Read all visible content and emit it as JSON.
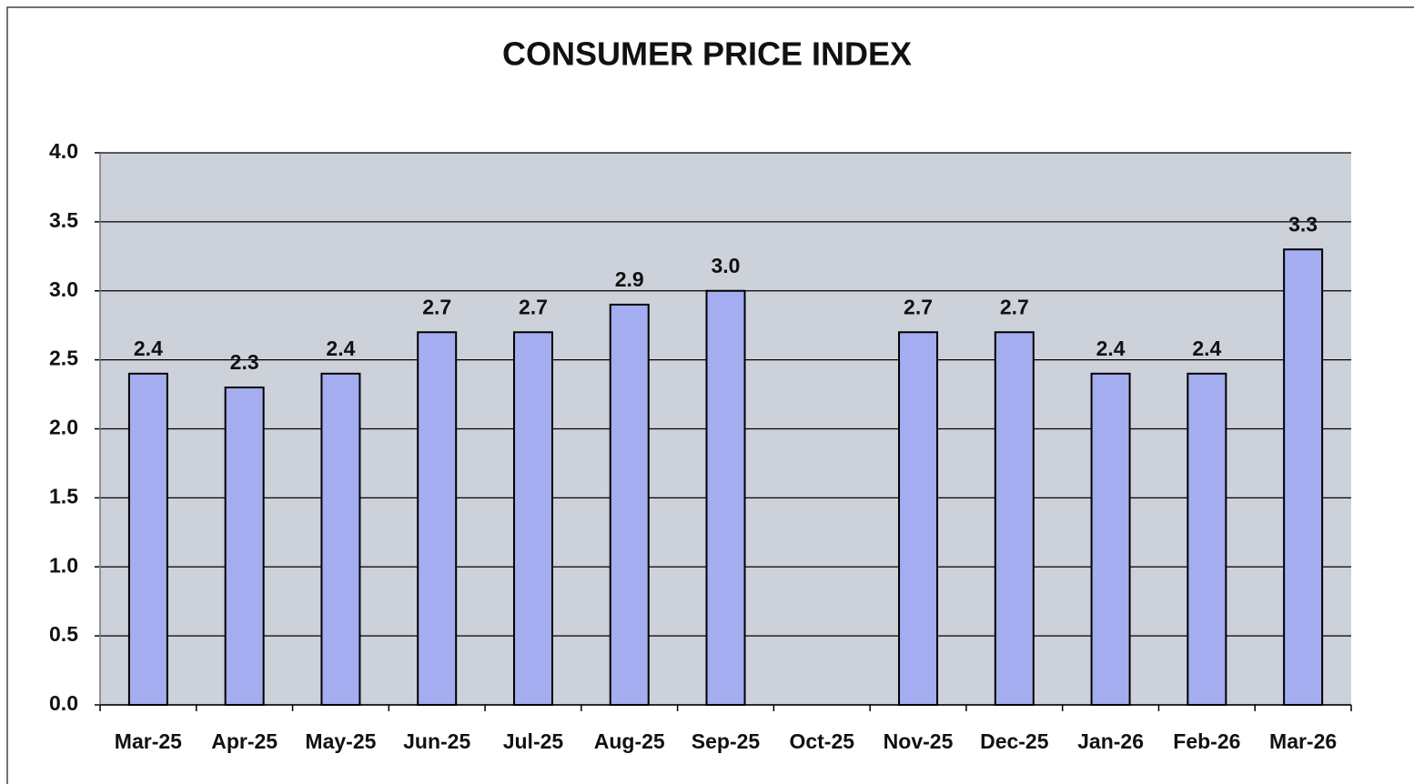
{
  "chart_data": {
    "type": "bar",
    "title": "CONSUMER PRICE INDEX",
    "categories": [
      "Mar-25",
      "Apr-25",
      "May-25",
      "Jun-25",
      "Jul-25",
      "Aug-25",
      "Sep-25",
      "Oct-25",
      "Nov-25",
      "Dec-25",
      "Jan-26",
      "Feb-26",
      "Mar-26"
    ],
    "values": [
      2.4,
      2.3,
      2.4,
      2.7,
      2.7,
      2.9,
      3.0,
      null,
      2.7,
      2.7,
      2.4,
      2.4,
      3.3
    ],
    "value_labels": [
      "2.4",
      "2.3",
      "2.4",
      "2.7",
      "2.7",
      "2.9",
      "3.0",
      null,
      "2.7",
      "2.7",
      "2.4",
      "2.4",
      "3.3"
    ],
    "color": "#a3adef",
    "ylim": [
      0,
      4
    ],
    "yticks": [
      {
        "value": 0,
        "label": "0.0"
      },
      0.5,
      {
        "value": 1,
        "label": "1.0"
      },
      1.5,
      {
        "value": 2,
        "label": "2.0"
      },
      2.5,
      {
        "value": 3,
        "label": "3.0"
      },
      3.5,
      {
        "value": 4,
        "label": "4.0"
      }
    ],
    "grid": true
  }
}
